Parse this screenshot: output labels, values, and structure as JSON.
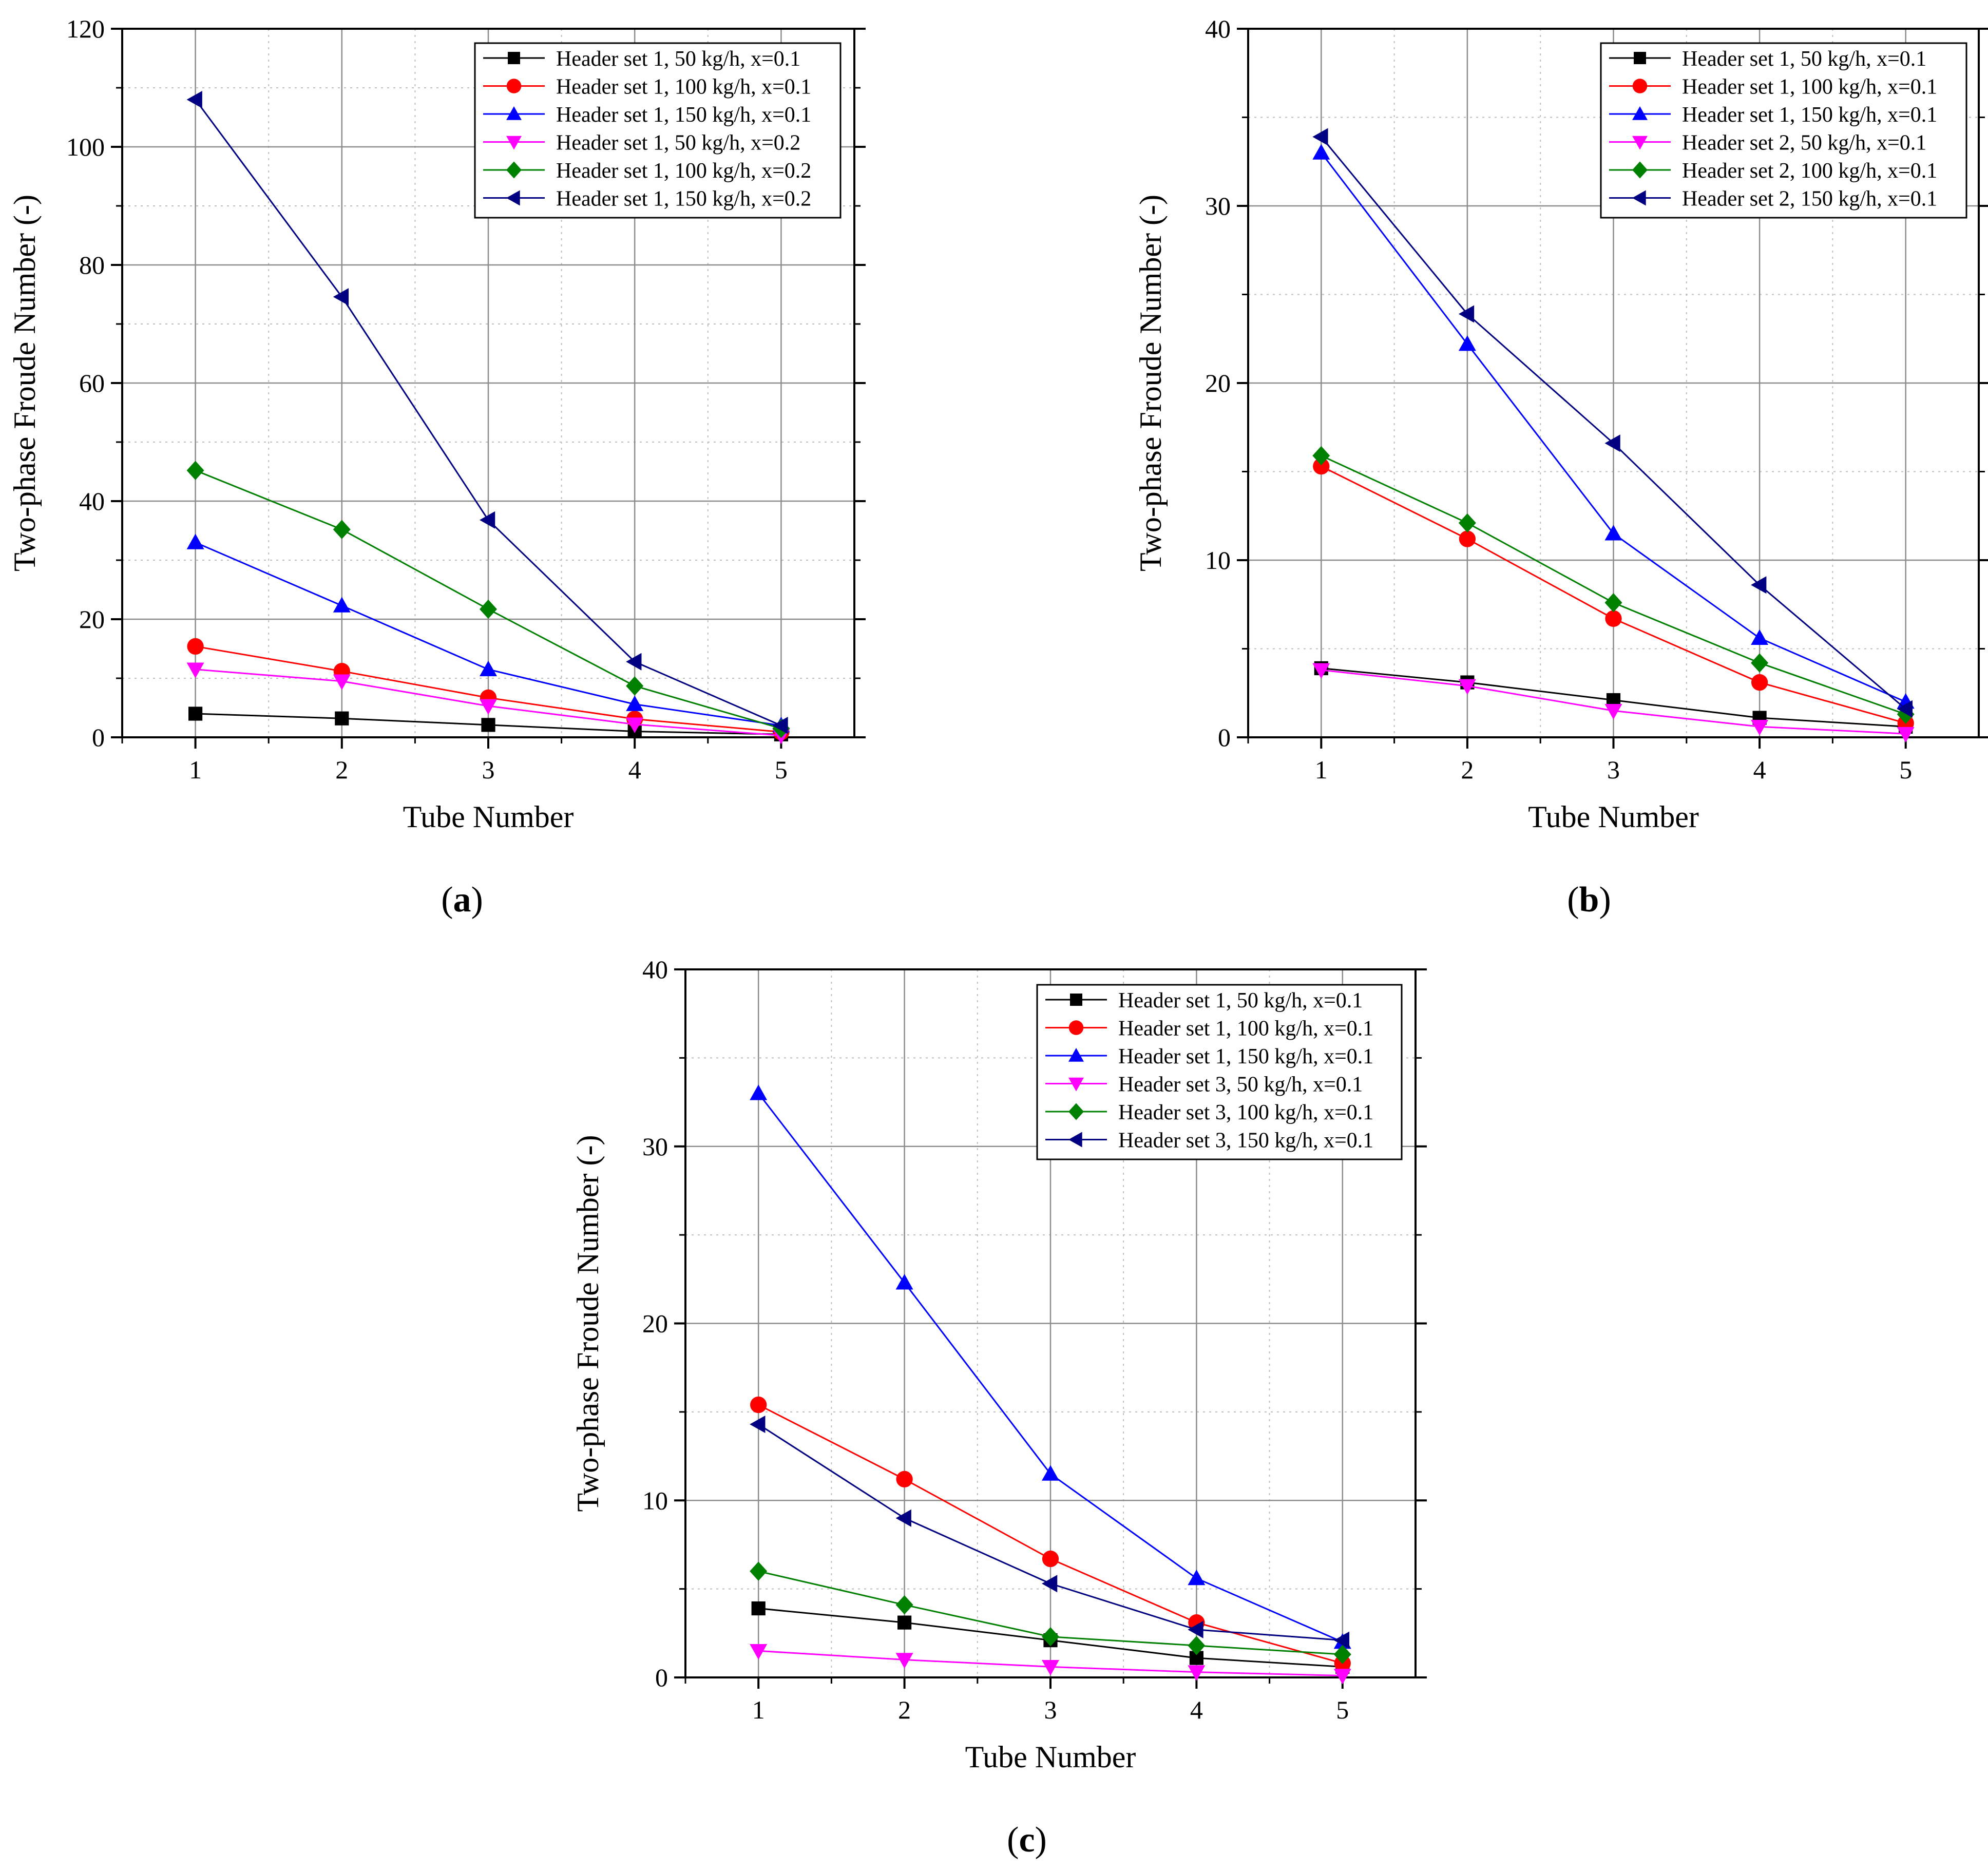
{
  "figure": {
    "panels": [
      "(a)",
      "(b)",
      "(c)"
    ]
  },
  "chart_data": [
    {
      "id": "a",
      "panel_label": "a",
      "type": "line",
      "xlabel": "Tube Number",
      "ylabel": "Two-phase Froude Number (-)",
      "x": [
        1,
        2,
        3,
        4,
        5
      ],
      "xlim": [
        0.5,
        5.5
      ],
      "ylim": [
        0,
        120
      ],
      "yticks": [
        0,
        20,
        40,
        60,
        80,
        100,
        120
      ],
      "grid": true,
      "legend_position": "top-right",
      "series": [
        {
          "name": "Header set 1, 50 kg/h, x=0.1",
          "color": "#000000",
          "marker": "square",
          "values": [
            4.0,
            3.2,
            2.1,
            1.0,
            0.5
          ]
        },
        {
          "name": "Header set 1, 100 kg/h, x=0.1",
          "color": "#ff0000",
          "marker": "circle",
          "values": [
            15.4,
            11.2,
            6.7,
            3.1,
            0.9
          ]
        },
        {
          "name": "Header set 1, 150 kg/h, x=0.1",
          "color": "#0000ff",
          "marker": "triangle-up",
          "values": [
            33.0,
            22.3,
            11.5,
            5.6,
            2.0
          ]
        },
        {
          "name": "Header set 1, 50 kg/h, x=0.2",
          "color": "#ff00ff",
          "marker": "triangle-down",
          "values": [
            11.5,
            9.5,
            5.3,
            2.2,
            0.3
          ]
        },
        {
          "name": "Header set 1, 100 kg/h, x=0.2",
          "color": "#008000",
          "marker": "diamond",
          "values": [
            45.2,
            35.2,
            21.7,
            8.7,
            1.5
          ]
        },
        {
          "name": "Header set 1, 150 kg/h, x=0.2",
          "color": "#000080",
          "marker": "triangle-left",
          "values": [
            108.0,
            74.6,
            36.8,
            12.8,
            2.0
          ]
        }
      ]
    },
    {
      "id": "b",
      "panel_label": "b",
      "type": "line",
      "xlabel": "Tube Number",
      "ylabel": "Two-phase Froude Number (-)",
      "x": [
        1,
        2,
        3,
        4,
        5
      ],
      "xlim": [
        0.5,
        5.5
      ],
      "ylim": [
        0,
        40
      ],
      "yticks": [
        0,
        10,
        20,
        30,
        40
      ],
      "grid": true,
      "legend_position": "top-right",
      "series": [
        {
          "name": "Header set 1, 50 kg/h, x=0.1",
          "color": "#000000",
          "marker": "square",
          "values": [
            3.9,
            3.1,
            2.1,
            1.1,
            0.6
          ]
        },
        {
          "name": "Header set 1, 100 kg/h, x=0.1",
          "color": "#ff0000",
          "marker": "circle",
          "values": [
            15.3,
            11.2,
            6.7,
            3.1,
            0.8
          ]
        },
        {
          "name": "Header set 1, 150 kg/h, x=0.1",
          "color": "#0000ff",
          "marker": "triangle-up",
          "values": [
            33.0,
            22.2,
            11.5,
            5.6,
            2.0
          ]
        },
        {
          "name": "Header set 2, 50 kg/h, x=0.1",
          "color": "#ff00ff",
          "marker": "triangle-down",
          "values": [
            3.8,
            2.9,
            1.5,
            0.6,
            0.2
          ]
        },
        {
          "name": "Header set 2, 100 kg/h, x=0.1",
          "color": "#008000",
          "marker": "diamond",
          "values": [
            15.9,
            12.1,
            7.6,
            4.2,
            1.3
          ]
        },
        {
          "name": "Header set 2, 150 kg/h, x=0.1",
          "color": "#000080",
          "marker": "triangle-left",
          "values": [
            33.9,
            23.9,
            16.6,
            8.6,
            1.6
          ]
        }
      ]
    },
    {
      "id": "c",
      "panel_label": "c",
      "type": "line",
      "xlabel": "Tube Number",
      "ylabel": "Two-phase Froude Number (-)",
      "x": [
        1,
        2,
        3,
        4,
        5
      ],
      "xlim": [
        0.5,
        5.5
      ],
      "ylim": [
        0,
        40
      ],
      "yticks": [
        0,
        10,
        20,
        30,
        40
      ],
      "grid": true,
      "legend_position": "top-right",
      "series": [
        {
          "name": "Header set 1, 50 kg/h, x=0.1",
          "color": "#000000",
          "marker": "square",
          "values": [
            3.9,
            3.1,
            2.1,
            1.1,
            0.6
          ]
        },
        {
          "name": "Header set 1, 100 kg/h, x=0.1",
          "color": "#ff0000",
          "marker": "circle",
          "values": [
            15.4,
            11.2,
            6.7,
            3.1,
            0.8
          ]
        },
        {
          "name": "Header set 1, 150 kg/h, x=0.1",
          "color": "#0000ff",
          "marker": "triangle-up",
          "values": [
            33.0,
            22.3,
            11.5,
            5.6,
            2.0
          ]
        },
        {
          "name": "Header set 3, 50 kg/h, x=0.1",
          "color": "#ff00ff",
          "marker": "triangle-down",
          "values": [
            1.5,
            1.0,
            0.6,
            0.3,
            0.1
          ]
        },
        {
          "name": "Header set 3, 100 kg/h, x=0.1",
          "color": "#008000",
          "marker": "diamond",
          "values": [
            6.0,
            4.1,
            2.3,
            1.8,
            1.3
          ]
        },
        {
          "name": "Header set 3, 150 kg/h, x=0.1",
          "color": "#000080",
          "marker": "triangle-left",
          "values": [
            14.3,
            9.0,
            5.3,
            2.7,
            2.1
          ]
        }
      ]
    }
  ]
}
